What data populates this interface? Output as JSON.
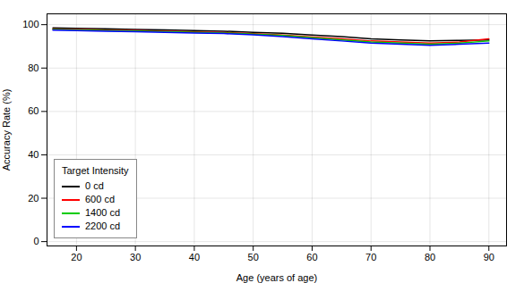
{
  "chart_data": {
    "type": "line",
    "xlabel": "Age (years of age)",
    "ylabel": "Accuracy Rate (%)",
    "x": [
      16,
      20,
      25,
      30,
      35,
      40,
      45,
      50,
      55,
      60,
      65,
      70,
      75,
      80,
      85,
      90
    ],
    "series": [
      {
        "name": "0 cd",
        "color": "#000000",
        "values": [
          98.5,
          98.3,
          98.1,
          97.8,
          97.6,
          97.3,
          97.0,
          96.5,
          96.0,
          95.2,
          94.5,
          93.5,
          93.0,
          92.5,
          92.8,
          93.0
        ]
      },
      {
        "name": "600 cd",
        "color": "#ff0000",
        "values": [
          98.0,
          97.8,
          97.5,
          97.3,
          97.0,
          96.7,
          96.4,
          95.8,
          95.2,
          94.3,
          93.5,
          92.5,
          92.0,
          91.5,
          92.0,
          93.5
        ]
      },
      {
        "name": "1400 cd",
        "color": "#00cc00",
        "values": [
          97.8,
          97.6,
          97.3,
          97.1,
          96.8,
          96.5,
          96.2,
          95.6,
          95.0,
          94.0,
          93.0,
          92.0,
          91.5,
          91.0,
          91.5,
          92.5
        ]
      },
      {
        "name": "2200 cd",
        "color": "#0000ff",
        "values": [
          97.5,
          97.3,
          97.0,
          96.8,
          96.5,
          96.2,
          95.9,
          95.3,
          94.5,
          93.5,
          92.5,
          91.5,
          91.0,
          90.5,
          91.0,
          91.5
        ]
      }
    ],
    "xlim": [
      15,
      93
    ],
    "ylim": [
      -2,
      105
    ],
    "xticks": [
      20,
      30,
      40,
      50,
      60,
      70,
      80,
      90
    ],
    "yticks": [
      0,
      20,
      40,
      60,
      80,
      100
    ],
    "grid": true,
    "legend": "lower left",
    "legend_title": "Target Intensity"
  }
}
